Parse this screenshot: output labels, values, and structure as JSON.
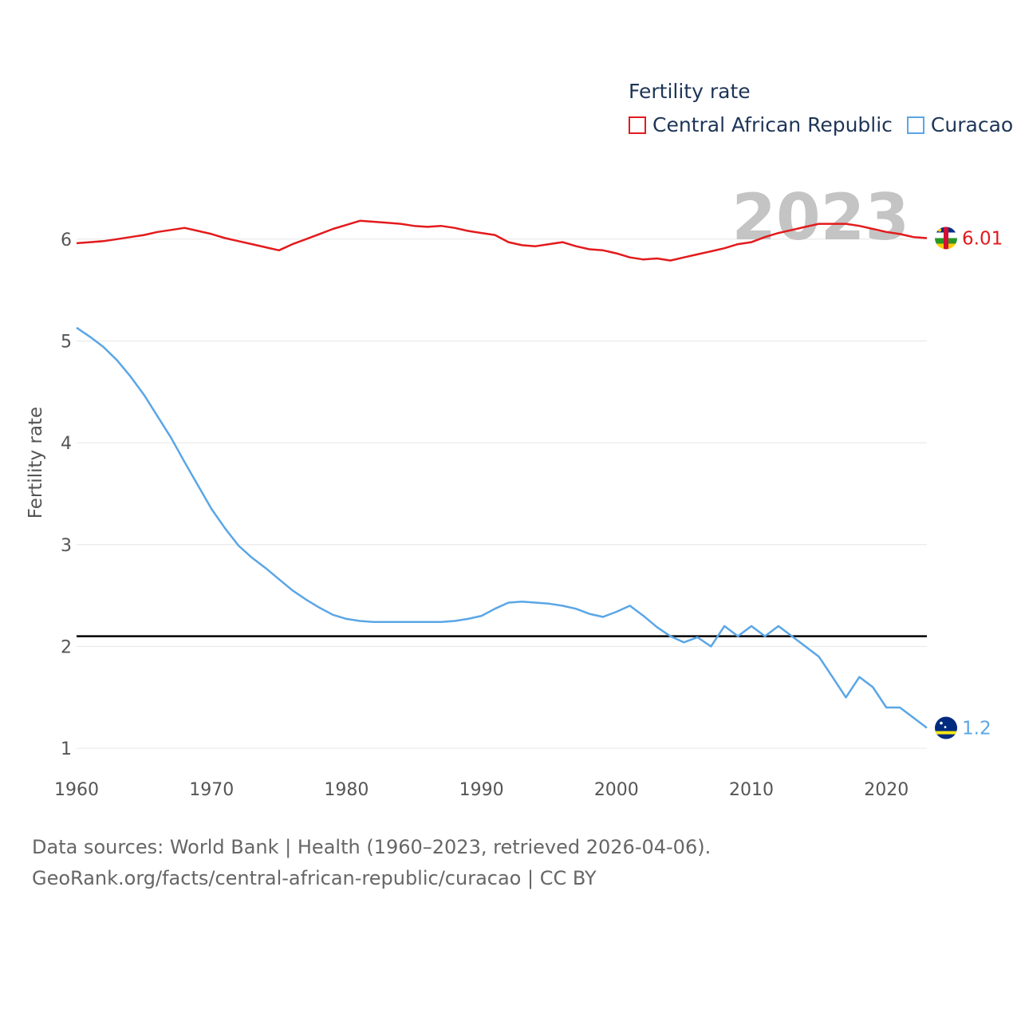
{
  "legend": {
    "title": "Fertility rate",
    "items": [
      {
        "name": "Central African Republic",
        "color": "#e31a1c"
      },
      {
        "name": "Curacao",
        "color": "#5aa6e6"
      }
    ]
  },
  "year_label": "2023",
  "footer": {
    "line1": "Data sources: World Bank | Health (1960–2023, retrieved 2026-04-06).",
    "line2": "GeoRank.org/facts/central-african-republic/curacao | CC BY"
  },
  "chart_data": {
    "type": "line",
    "title": "Fertility rate",
    "xlabel": "",
    "ylabel": "Fertility rate",
    "xlim": [
      1960,
      2023
    ],
    "ylim": [
      0.75,
      6.75
    ],
    "x_ticks": [
      1960,
      1970,
      1980,
      1990,
      2000,
      2010,
      2020
    ],
    "y_ticks": [
      1,
      2,
      3,
      4,
      5,
      6
    ],
    "reference_line": {
      "value": 2.1,
      "color": "#000000"
    },
    "x": [
      1960,
      1961,
      1962,
      1963,
      1964,
      1965,
      1966,
      1967,
      1968,
      1969,
      1970,
      1971,
      1972,
      1973,
      1974,
      1975,
      1976,
      1977,
      1978,
      1979,
      1980,
      1981,
      1982,
      1983,
      1984,
      1985,
      1986,
      1987,
      1988,
      1989,
      1990,
      1991,
      1992,
      1993,
      1994,
      1995,
      1996,
      1997,
      1998,
      1999,
      2000,
      2001,
      2002,
      2003,
      2004,
      2005,
      2006,
      2007,
      2008,
      2009,
      2010,
      2011,
      2012,
      2013,
      2014,
      2015,
      2016,
      2017,
      2018,
      2019,
      2020,
      2021,
      2022,
      2023
    ],
    "series": [
      {
        "name": "Central African Republic",
        "color": "#e31a1c",
        "end_label": "6.01",
        "values": [
          5.96,
          5.97,
          5.98,
          6.0,
          6.02,
          6.04,
          6.07,
          6.09,
          6.11,
          6.08,
          6.05,
          6.01,
          5.98,
          5.95,
          5.92,
          5.89,
          5.95,
          6.0,
          6.05,
          6.1,
          6.14,
          6.18,
          6.17,
          6.16,
          6.15,
          6.13,
          6.12,
          6.13,
          6.11,
          6.08,
          6.06,
          6.04,
          5.97,
          5.94,
          5.93,
          5.95,
          5.97,
          5.93,
          5.9,
          5.89,
          5.86,
          5.82,
          5.8,
          5.81,
          5.79,
          5.82,
          5.85,
          5.88,
          5.91,
          5.95,
          5.97,
          6.02,
          6.06,
          6.09,
          6.12,
          6.15,
          6.15,
          6.15,
          6.13,
          6.1,
          6.07,
          6.05,
          6.02,
          6.01
        ]
      },
      {
        "name": "Curacao",
        "color": "#5aa6e6",
        "end_label": "1.2",
        "values": [
          5.13,
          5.04,
          4.94,
          4.81,
          4.65,
          4.47,
          4.26,
          4.05,
          3.81,
          3.58,
          3.35,
          3.16,
          2.99,
          2.87,
          2.77,
          2.66,
          2.55,
          2.46,
          2.38,
          2.31,
          2.27,
          2.25,
          2.24,
          2.24,
          2.24,
          2.24,
          2.24,
          2.24,
          2.25,
          2.27,
          2.3,
          2.37,
          2.43,
          2.44,
          2.43,
          2.42,
          2.4,
          2.37,
          2.32,
          2.29,
          2.34,
          2.4,
          2.3,
          2.19,
          2.1,
          2.04,
          2.09,
          2.0,
          2.2,
          2.1,
          2.2,
          2.1,
          2.2,
          2.1,
          2.0,
          1.9,
          1.7,
          1.5,
          1.7,
          1.6,
          1.4,
          1.4,
          1.3,
          1.2
        ]
      }
    ]
  }
}
